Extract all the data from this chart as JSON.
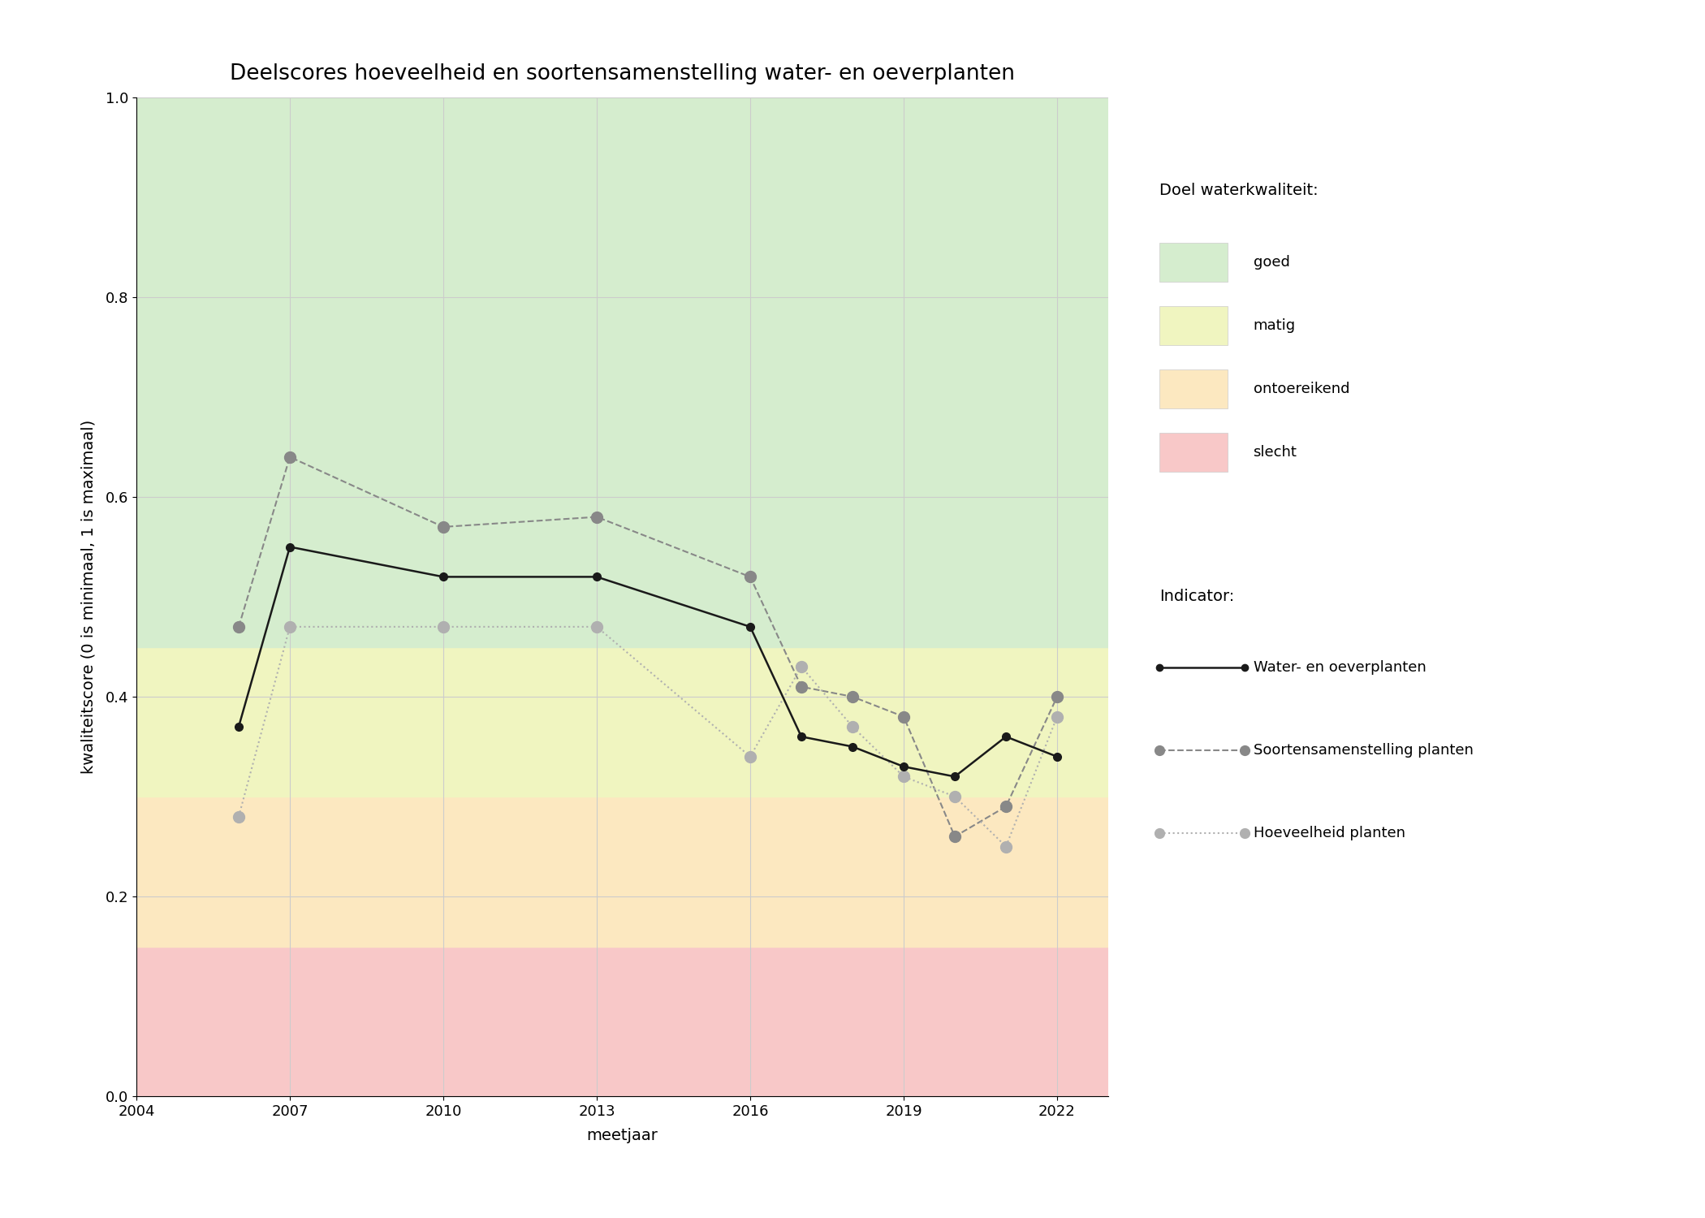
{
  "title": "Deelscores hoeveelheid en soortensamenstelling water- en oeverplanten",
  "xlabel": "meetjaar",
  "ylabel": "kwaliteitscore (0 is minimaal, 1 is maximaal)",
  "xlim": [
    2004,
    2023
  ],
  "ylim": [
    0.0,
    1.0
  ],
  "xticks": [
    2004,
    2007,
    2010,
    2013,
    2016,
    2019,
    2022
  ],
  "yticks": [
    0.0,
    0.2,
    0.4,
    0.6,
    0.8,
    1.0
  ],
  "bg_colors": {
    "goed": "#d5edce",
    "matig": "#f0f5c0",
    "ontoereikend": "#fce8c0",
    "slecht": "#f8c8c8"
  },
  "bg_thresholds": {
    "slecht_max": 0.15,
    "ontoereikend_max": 0.3,
    "matig_max": 0.45,
    "goed_max": 1.0
  },
  "water_oever": {
    "years": [
      2006,
      2007,
      2010,
      2013,
      2016,
      2017,
      2018,
      2019,
      2020,
      2021,
      2022
    ],
    "values": [
      0.37,
      0.55,
      0.52,
      0.52,
      0.47,
      0.36,
      0.35,
      0.33,
      0.32,
      0.36,
      0.34
    ],
    "color": "#1a1a1a",
    "linestyle": "-",
    "marker": "o",
    "markersize": 7,
    "linewidth": 1.8
  },
  "soortensamenstelling": {
    "years": [
      2006,
      2007,
      2010,
      2013,
      2016,
      2017,
      2018,
      2019,
      2020,
      2021,
      2022
    ],
    "values": [
      0.47,
      0.64,
      0.57,
      0.58,
      0.52,
      0.41,
      0.4,
      0.38,
      0.26,
      0.29,
      0.4
    ],
    "color": "#888888",
    "linestyle": "--",
    "marker": "o",
    "markersize": 10,
    "linewidth": 1.5
  },
  "hoeveelheid": {
    "years": [
      2006,
      2007,
      2010,
      2013,
      2016,
      2017,
      2018,
      2019,
      2020,
      2021,
      2022
    ],
    "values": [
      0.28,
      0.47,
      0.47,
      0.47,
      0.34,
      0.43,
      0.37,
      0.32,
      0.3,
      0.25,
      0.38
    ],
    "color": "#b0b0b0",
    "linestyle": ":",
    "marker": "o",
    "markersize": 10,
    "linewidth": 1.5
  },
  "legend_quality_title": "Doel waterkwaliteit:",
  "legend_quality_items": [
    "goed",
    "matig",
    "ontoereikend",
    "slecht"
  ],
  "legend_quality_colors": [
    "#d5edce",
    "#f0f5c0",
    "#fce8c0",
    "#f8c8c8"
  ],
  "legend_indicator_title": "Indicator:",
  "legend_indicator_items": [
    "Water- en oeverplanten",
    "Soortensamenstelling planten",
    "Hoeveelheid planten"
  ],
  "background_color": "#ffffff",
  "grid_color": "#cccccc",
  "title_fontsize": 19,
  "axis_label_fontsize": 14,
  "tick_fontsize": 13,
  "legend_fontsize": 13
}
